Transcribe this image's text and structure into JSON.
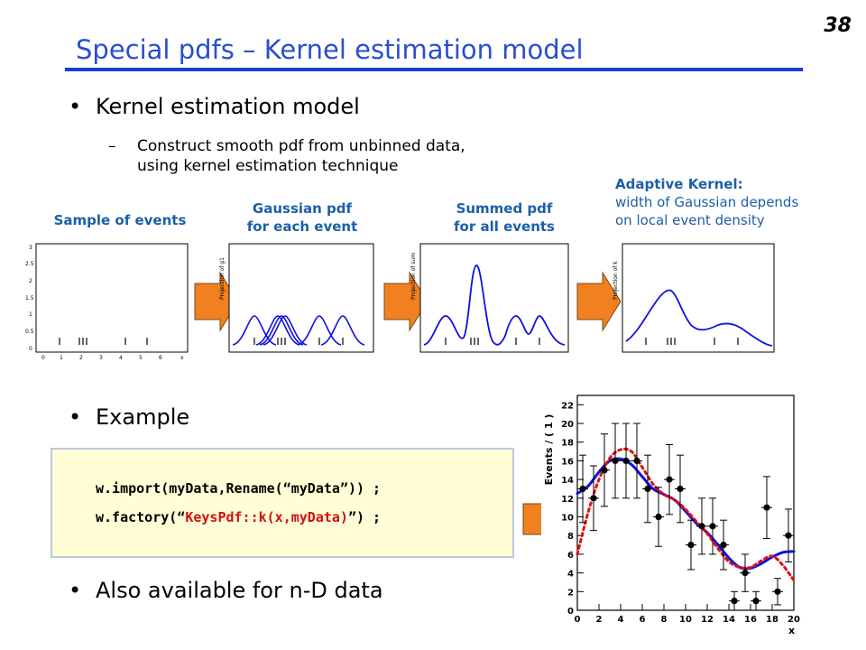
{
  "slide_number": "38",
  "title": "Special pdfs – Kernel estimation model",
  "bullets": {
    "b1": "Kernel estimation model",
    "b1_sub_line1": "Construct smooth pdf from unbinned data,",
    "b1_sub_line2": "using kernel estimation technique",
    "b2": "Example",
    "b3": "Also available for n-D data"
  },
  "panels": {
    "p1_label": "Sample of events",
    "p2_label_line1": "Gaussian pdf",
    "p2_label_line2": "for each event",
    "p3_label_line1": "Summed pdf",
    "p3_label_line2": "for all events",
    "p4_title": "Adaptive Kernel:",
    "p4_line1": "width of Gaussian depends",
    "p4_line2": "on local event density",
    "p2_ylabel": "Projection of g1",
    "p3_ylabel": "Projection of sum",
    "p4_ylabel": "Projection of k"
  },
  "code": {
    "line1": "w.import(myData,Rename(“myData”)) ;",
    "line2_prefix": "w.factory(“",
    "line2_red": "KeysPdf::k(x,myData)",
    "line2_suffix": "”) ;"
  },
  "colors": {
    "title": "#2a4ed0",
    "accent_label": "#1d5fa8",
    "curve": "#1010e0",
    "dotted": "#e01010",
    "arrow": "#f08020"
  },
  "chart_data": {
    "type": "scatter",
    "title": "",
    "xlabel": "x",
    "ylabel": "Events / ( 1 )",
    "xlim": [
      0,
      20
    ],
    "ylim": [
      0,
      23
    ],
    "xticks": [
      0,
      2,
      4,
      6,
      8,
      10,
      12,
      14,
      16,
      18,
      20
    ],
    "yticks": [
      0,
      2,
      4,
      6,
      8,
      10,
      12,
      14,
      16,
      18,
      20,
      22
    ],
    "points": [
      {
        "x": 0.5,
        "y": 13
      },
      {
        "x": 1.5,
        "y": 12
      },
      {
        "x": 2.5,
        "y": 15
      },
      {
        "x": 3.5,
        "y": 16
      },
      {
        "x": 4.5,
        "y": 16
      },
      {
        "x": 5.5,
        "y": 16
      },
      {
        "x": 6.5,
        "y": 13
      },
      {
        "x": 7.5,
        "y": 10
      },
      {
        "x": 8.5,
        "y": 14
      },
      {
        "x": 9.5,
        "y": 13
      },
      {
        "x": 10.5,
        "y": 7
      },
      {
        "x": 11.5,
        "y": 9
      },
      {
        "x": 12.5,
        "y": 9
      },
      {
        "x": 13.5,
        "y": 7
      },
      {
        "x": 14.5,
        "y": 1
      },
      {
        "x": 15.5,
        "y": 4
      },
      {
        "x": 16.5,
        "y": 1
      },
      {
        "x": 17.5,
        "y": 11
      },
      {
        "x": 18.5,
        "y": 2
      },
      {
        "x": 19.5,
        "y": 8
      }
    ],
    "series": [
      {
        "style": "solid-blue",
        "x": [
          0,
          1,
          2,
          3,
          4,
          5,
          6,
          7,
          8,
          9,
          10,
          11,
          12,
          13,
          14,
          15,
          16,
          17,
          18,
          19,
          20
        ],
        "y": [
          12.5,
          13.3,
          14.8,
          16.0,
          16.2,
          15.6,
          14.3,
          13.0,
          12.4,
          11.8,
          10.6,
          9.3,
          8.3,
          7.0,
          5.6,
          4.6,
          4.5,
          5.0,
          5.7,
          6.2,
          6.3
        ]
      },
      {
        "style": "dotted-red",
        "x": [
          0,
          1,
          2,
          3,
          4,
          5,
          6,
          7,
          8,
          9,
          10,
          11,
          12,
          13,
          14,
          15,
          16,
          17,
          18,
          19,
          20
        ],
        "y": [
          6.0,
          10.5,
          14.0,
          16.3,
          17.2,
          17.0,
          15.3,
          13.5,
          12.4,
          11.8,
          10.8,
          9.5,
          8.2,
          6.6,
          5.2,
          4.6,
          4.6,
          5.3,
          5.8,
          4.8,
          3.2
        ]
      }
    ]
  }
}
